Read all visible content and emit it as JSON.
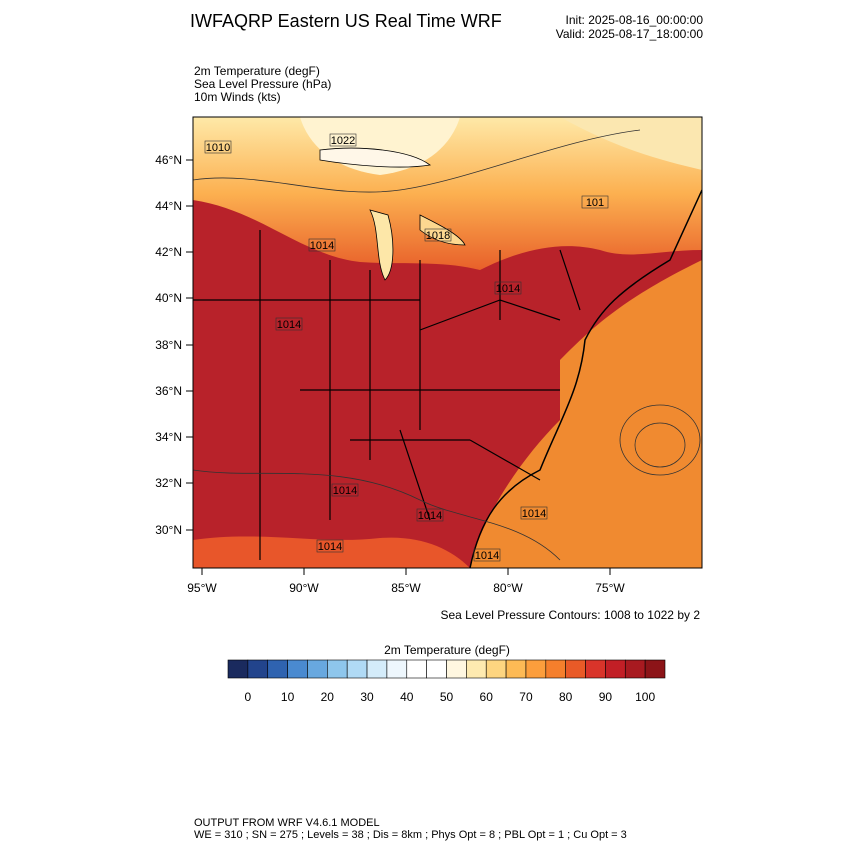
{
  "header": {
    "title": "IWFAQRP Eastern US Real Time WRF",
    "init": "Init: 2025-08-16_00:00:00",
    "valid": "Valid: 2025-08-17_18:00:00"
  },
  "fields": [
    "2m Temperature   (degF)",
    "Sea Level Pressure   (hPa)",
    "10m Winds   (kts)"
  ],
  "map": {
    "lat_labels": [
      "46°N",
      "44°N",
      "42°N",
      "40°N",
      "38°N",
      "36°N",
      "34°N",
      "32°N",
      "30°N"
    ],
    "lon_labels": [
      "95°W",
      "90°W",
      "85°W",
      "80°W",
      "75°W"
    ],
    "pressure_labels": [
      "1010",
      "1022",
      "1014",
      "1018",
      "1014",
      "1014",
      "1014",
      "1014",
      "1014",
      "1014",
      "1014",
      "101"
    ],
    "contour_note": "Sea Level Pressure Contours: 1008 to 1022 by 2"
  },
  "colorbar": {
    "title": "2m Temperature  (degF)",
    "lim": [
      -5,
      105
    ],
    "ticks": [
      0,
      10,
      20,
      30,
      40,
      50,
      60,
      70,
      80,
      90,
      100
    ],
    "colors": [
      "#1a2a5e",
      "#22448c",
      "#2f63b0",
      "#4a8ad0",
      "#68a8df",
      "#8ec6ec",
      "#b0daf5",
      "#d4ecfa",
      "#eef7fd",
      "#ffffff",
      "#ffffff",
      "#fff7e0",
      "#feeab0",
      "#fed580",
      "#fdba55",
      "#fc9e3c",
      "#f57f2c",
      "#e95a27",
      "#d9342a",
      "#c21f26",
      "#a81a20",
      "#8c1418"
    ]
  },
  "footer": [
    "OUTPUT FROM WRF V4.6.1 MODEL",
    "WE = 310 ; SN = 275 ; Levels = 38 ; Dis = 8km ; Phys Opt = 8 ; PBL Opt = 1 ; Cu Opt = 3"
  ]
}
